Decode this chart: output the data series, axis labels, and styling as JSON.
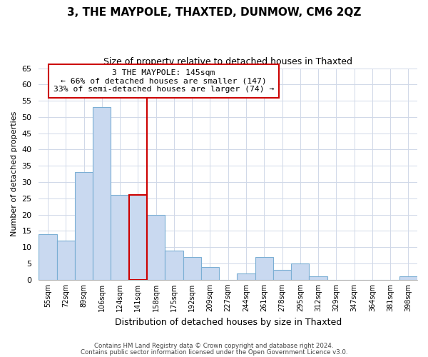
{
  "title": "3, THE MAYPOLE, THAXTED, DUNMOW, CM6 2QZ",
  "subtitle": "Size of property relative to detached houses in Thaxted",
  "xlabel": "Distribution of detached houses by size in Thaxted",
  "ylabel": "Number of detached properties",
  "bin_labels": [
    "55sqm",
    "72sqm",
    "89sqm",
    "106sqm",
    "124sqm",
    "141sqm",
    "158sqm",
    "175sqm",
    "192sqm",
    "209sqm",
    "227sqm",
    "244sqm",
    "261sqm",
    "278sqm",
    "295sqm",
    "312sqm",
    "329sqm",
    "347sqm",
    "364sqm",
    "381sqm",
    "398sqm"
  ],
  "bar_heights": [
    14,
    12,
    33,
    53,
    26,
    26,
    20,
    9,
    7,
    4,
    0,
    2,
    7,
    3,
    5,
    1,
    0,
    0,
    0,
    0,
    1
  ],
  "bar_color": "#c9d9f0",
  "bar_edge_color": "#7bafd4",
  "highlight_bin_index": 5,
  "highlight_color": "#cc0000",
  "red_line_x": 5.5,
  "ylim": [
    0,
    65
  ],
  "yticks": [
    0,
    5,
    10,
    15,
    20,
    25,
    30,
    35,
    40,
    45,
    50,
    55,
    60,
    65
  ],
  "annotation_title": "3 THE MAYPOLE: 145sqm",
  "annotation_line1": "← 66% of detached houses are smaller (147)",
  "annotation_line2": "33% of semi-detached houses are larger (74) →",
  "footer_line1": "Contains HM Land Registry data © Crown copyright and database right 2024.",
  "footer_line2": "Contains public sector information licensed under the Open Government Licence v3.0.",
  "background_color": "#ffffff",
  "grid_color": "#d0d8e8"
}
